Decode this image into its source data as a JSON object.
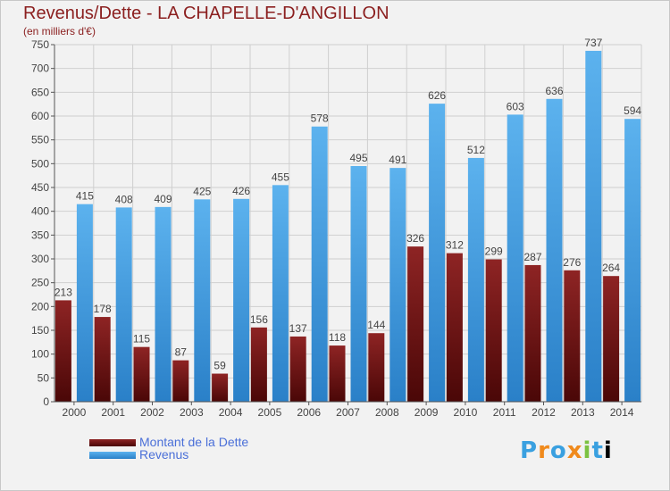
{
  "chart_data": {
    "type": "bar",
    "title": "Revenus/Dette - LA CHAPELLE-D'ANGILLON",
    "subtitle": "(en milliers d'€)",
    "categories": [
      "2000",
      "2001",
      "2002",
      "2003",
      "2004",
      "2005",
      "2006",
      "2007",
      "2008",
      "2009",
      "2010",
      "2011",
      "2012",
      "2013",
      "2014"
    ],
    "series": [
      {
        "name": "Montant de la Dette",
        "color": "#7a1717",
        "values": [
          213,
          178,
          115,
          87,
          59,
          156,
          137,
          118,
          144,
          326,
          312,
          299,
          287,
          276,
          264
        ]
      },
      {
        "name": "Revenus",
        "color": "#4aa3e6",
        "values": [
          415,
          408,
          409,
          425,
          426,
          455,
          578,
          495,
          491,
          626,
          512,
          603,
          636,
          737,
          594
        ]
      }
    ],
    "ylim": [
      0,
      750
    ],
    "yticks": [
      0,
      50,
      100,
      150,
      200,
      250,
      300,
      350,
      400,
      450,
      500,
      550,
      600,
      650,
      700,
      750
    ],
    "grid": true,
    "legend": "bottom-left"
  },
  "logo": {
    "letters": [
      "P",
      "r",
      "o",
      "x",
      "i",
      "t",
      "i"
    ]
  }
}
